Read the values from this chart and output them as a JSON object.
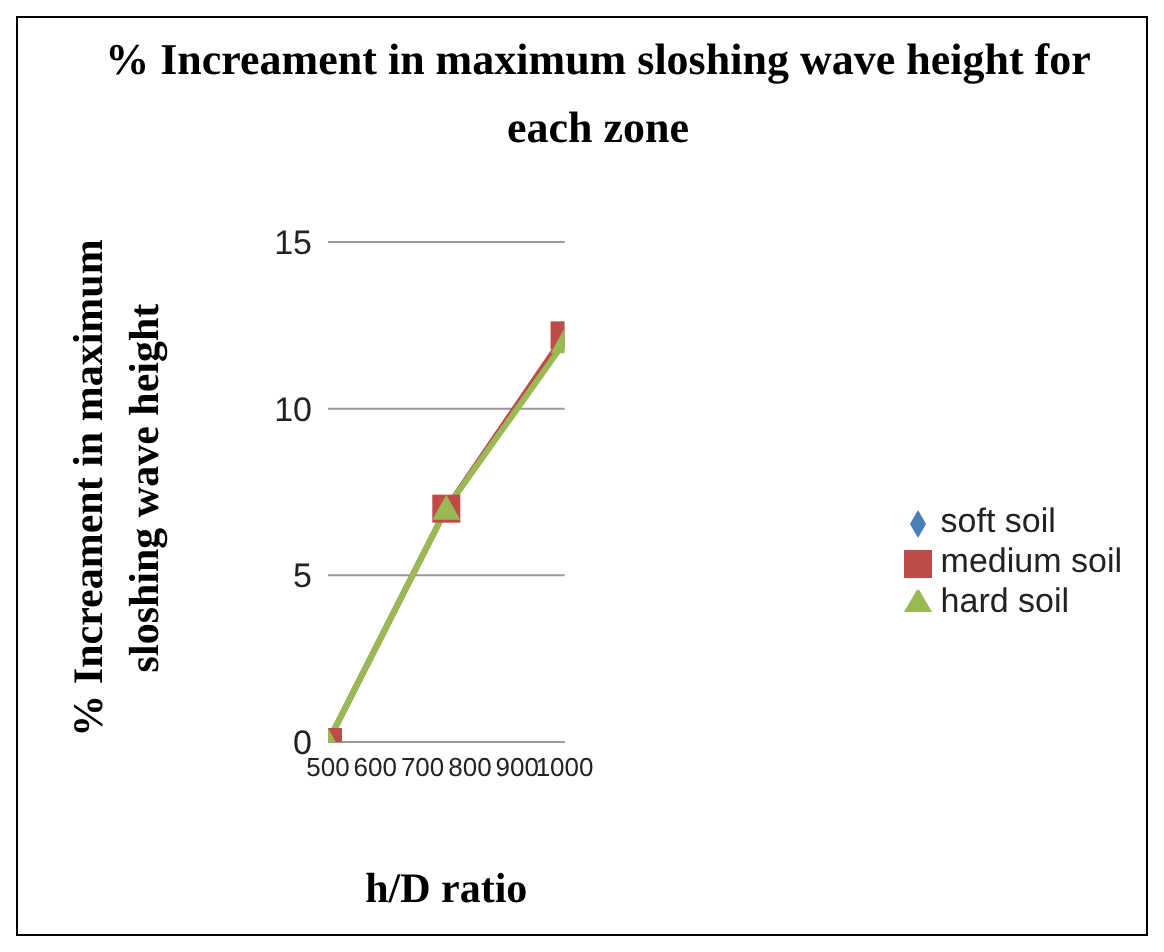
{
  "chart_data": {
    "type": "line",
    "title": "% Increament in maximum sloshing wave height for each zone",
    "xlabel": "h/D ratio",
    "ylabel": "% Increament in maximum sloshing wave height",
    "x": [
      500,
      750,
      1000
    ],
    "series": [
      {
        "name": "soft soil",
        "color": "#4a7ebb",
        "marker": "diamond",
        "values": [
          null,
          null,
          null
        ]
      },
      {
        "name": "medium soil",
        "color": "#be4b48",
        "marker": "square",
        "values": [
          0,
          7,
          12.2
        ]
      },
      {
        "name": "hard soil",
        "color": "#98b954",
        "marker": "triangle",
        "values": [
          0,
          7,
          12
        ]
      }
    ],
    "xlim": [
      500,
      1000
    ],
    "xticks": [
      500,
      600,
      700,
      800,
      900,
      1000
    ],
    "ylim": [
      0,
      15
    ],
    "yticks": [
      0,
      5,
      10,
      15
    ],
    "grid": "y",
    "legend": "right"
  }
}
